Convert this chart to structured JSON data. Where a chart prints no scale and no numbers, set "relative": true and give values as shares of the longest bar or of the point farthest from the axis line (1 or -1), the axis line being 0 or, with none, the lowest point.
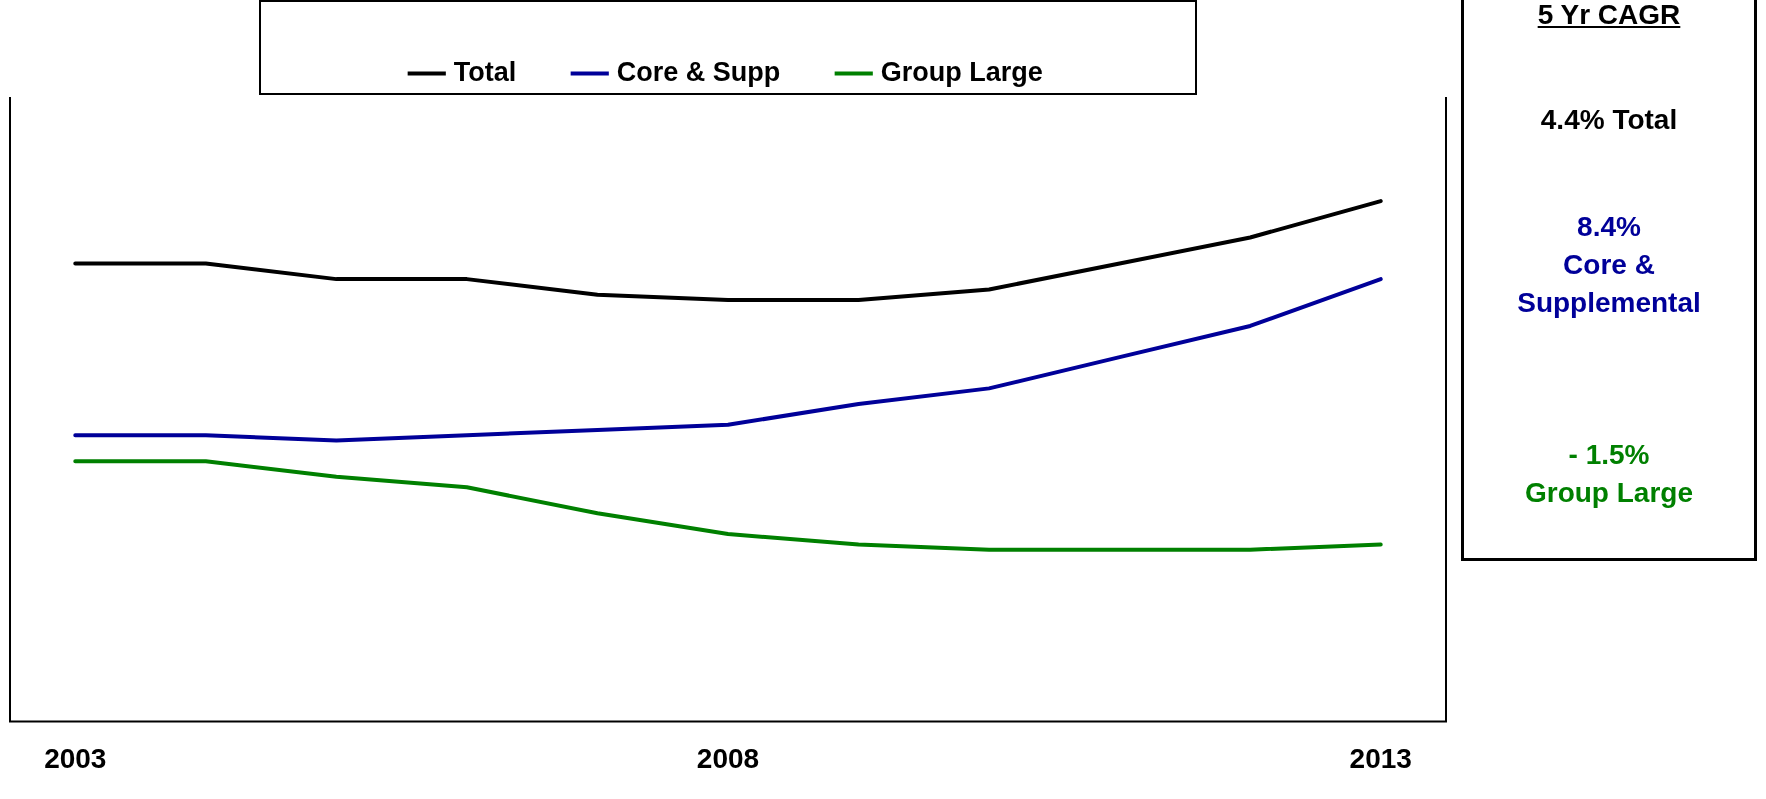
{
  "chart_data": {
    "type": "line",
    "relative": true,
    "x": [
      2003,
      2004,
      2005,
      2006,
      2007,
      2008,
      2009,
      2010,
      2011,
      2012,
      2013
    ],
    "xlim": [
      2002.5,
      2013.5
    ],
    "xticks": [
      2003,
      2008,
      2013
    ],
    "tick_labels": "x",
    "grid": false,
    "legend": "top",
    "marker": "none",
    "line_style": "solid",
    "series": [
      {
        "name": "Total",
        "color": "#000000",
        "values": [
          0.88,
          0.88,
          0.85,
          0.85,
          0.82,
          0.81,
          0.81,
          0.83,
          0.88,
          0.93,
          1
        ]
      },
      {
        "name": "Core & Supp",
        "color": "#000099",
        "values": [
          0.55,
          0.55,
          0.54,
          0.55,
          0.56,
          0.57,
          0.61,
          0.64,
          0.7,
          0.76,
          0.85
        ]
      },
      {
        "name": "Group Large",
        "color": "#008000",
        "values": [
          0.5,
          0.5,
          0.47,
          0.45,
          0.4,
          0.36,
          0.34,
          0.33,
          0.33,
          0.33,
          0.34
        ]
      }
    ],
    "annotations": [
      "5 Yr CAGR",
      "4.4% Total",
      "8.4%\nCore &\nSupplemental",
      "- 1.5%\nGroup Large"
    ]
  }
}
